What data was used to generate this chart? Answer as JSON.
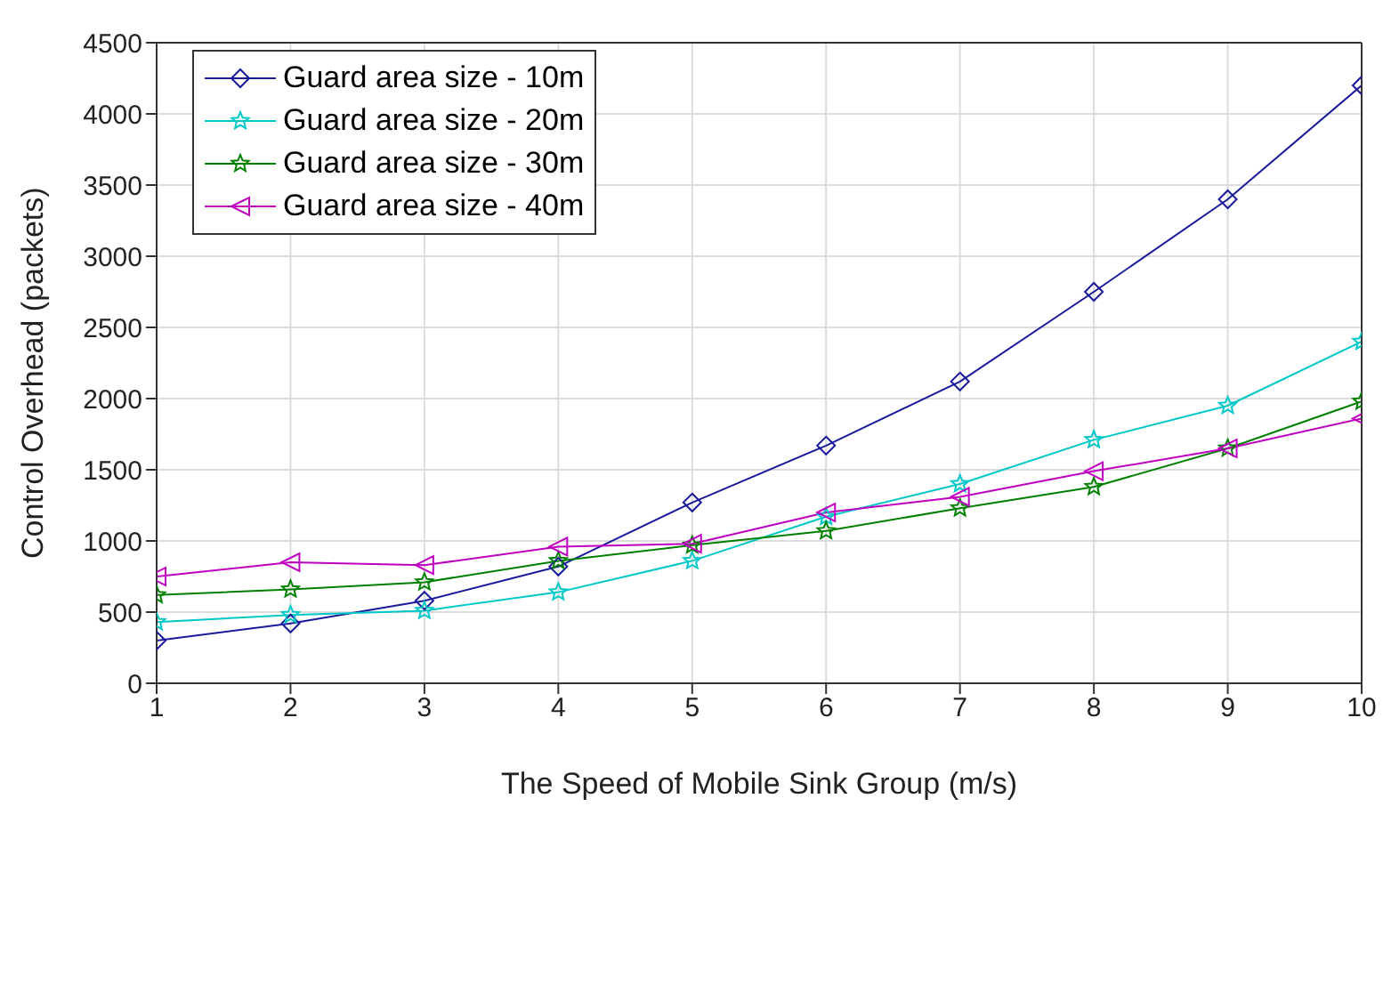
{
  "chart_data": {
    "type": "line",
    "xlabel": "The Speed of Mobile Sink Group (m/s)",
    "ylabel": "Control Overhead (packets)",
    "x": [
      1,
      2,
      3,
      4,
      5,
      6,
      7,
      8,
      9,
      10
    ],
    "series": [
      {
        "name": "Guard area size - 10m",
        "color": "#1a1a9c",
        "marker": "diamond",
        "values": [
          300,
          420,
          580,
          820,
          1270,
          1670,
          2120,
          2750,
          3400,
          4200
        ]
      },
      {
        "name": "Guard area size - 20m",
        "color": "#00c8c8",
        "marker": "star",
        "values": [
          430,
          480,
          510,
          640,
          860,
          1170,
          1400,
          1710,
          1950,
          2400
        ]
      },
      {
        "name": "Guard area size - 30m",
        "color": "#008000",
        "marker": "star",
        "values": [
          620,
          660,
          710,
          860,
          970,
          1070,
          1230,
          1380,
          1650,
          1980
        ]
      },
      {
        "name": "Guard area size - 40m",
        "color": "#c000c0",
        "marker": "triangle",
        "values": [
          750,
          850,
          830,
          960,
          980,
          1200,
          1310,
          1490,
          1650,
          1860
        ]
      }
    ],
    "xlim": [
      1,
      10
    ],
    "xticks": [
      1,
      2,
      3,
      4,
      5,
      6,
      7,
      8,
      9,
      10
    ],
    "ylim": [
      0,
      4500
    ],
    "yticks": [
      0,
      500,
      1000,
      1500,
      2000,
      2500,
      3000,
      3500,
      4000,
      4500
    ],
    "grid": true,
    "legend": "top left",
    "line_style": "solid"
  }
}
